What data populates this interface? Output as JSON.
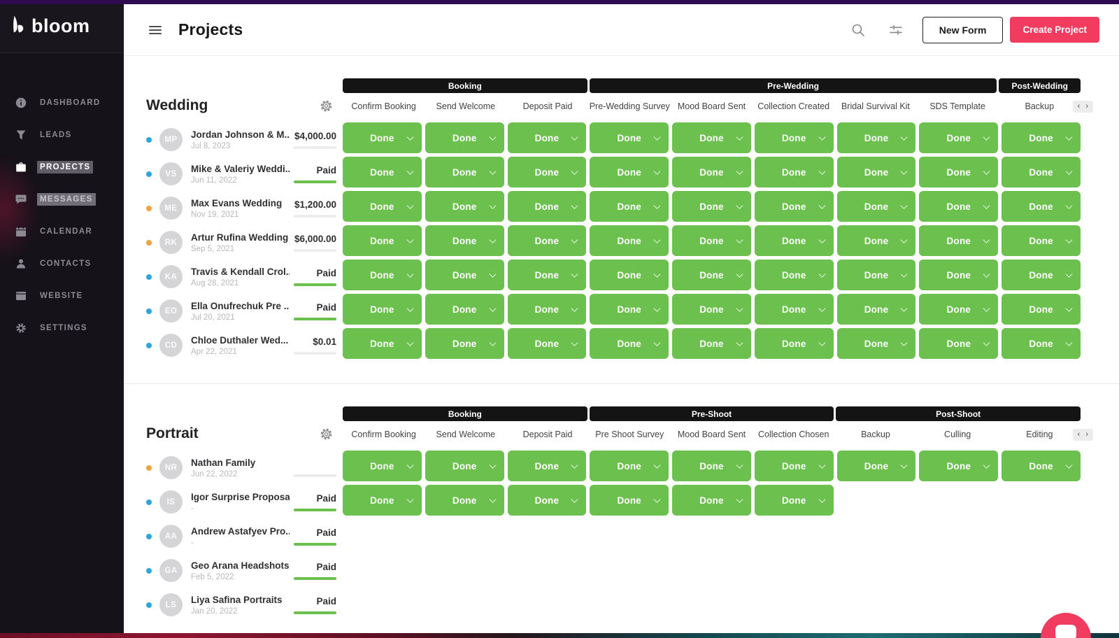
{
  "colors": {
    "accent_pink": "#f23c5f",
    "done_green": "#6cc04e",
    "dot_blue": "#2ba7e0",
    "dot_orange": "#f2a33c",
    "topbar_purple": "#2f0b50",
    "group_bar_black": "#141414",
    "sidebar_bg": "#16121a"
  },
  "icons": {
    "menu": "hamburger-menu",
    "search": "magnifying-glass",
    "filters": "sliders",
    "section_settings": "gear",
    "pager_prev_glyph": "‹",
    "pager_next_glyph": "›",
    "done_chevron": "chevron-down",
    "chat": "chat-window"
  },
  "sidebar": {
    "logo_text": "bloom",
    "items": [
      {
        "label": "DASHBOARD",
        "icon": "info-circle",
        "state": "normal"
      },
      {
        "label": "LEADS",
        "icon": "funnel",
        "state": "normal"
      },
      {
        "label": "PROJECTS",
        "icon": "briefcase",
        "state": "active"
      },
      {
        "label": "MESSAGES",
        "icon": "chat-bubble",
        "state": "highlighted"
      },
      {
        "label": "CALENDAR",
        "icon": "calendar",
        "state": "normal"
      },
      {
        "label": "CONTACTS",
        "icon": "person",
        "state": "normal"
      },
      {
        "label": "WEBSITE",
        "icon": "browser-window",
        "state": "normal"
      },
      {
        "label": "SETTINGS",
        "icon": "gear",
        "state": "normal"
      }
    ]
  },
  "header": {
    "title": "Projects",
    "new_form_label": "New Form",
    "create_project_label": "Create Project"
  },
  "done_label": "Done",
  "sections": [
    {
      "title": "Wedding",
      "groups": [
        {
          "label": "Booking",
          "span": 3
        },
        {
          "label": "Pre-Wedding",
          "span": 5
        },
        {
          "label": "Post-Wedding",
          "span": 1
        }
      ],
      "columns": [
        "Confirm Booking",
        "Send Welcome",
        "Deposit Paid",
        "Pre-Wedding Survey",
        "Mood Board Sent",
        "Collection Created",
        "Bridal Survival Kit",
        "SDS Template",
        "Backup"
      ],
      "clients": [
        {
          "dot": "blue",
          "initials": "MP",
          "name": "Jordan Johnson & M...",
          "date": "Jul 8, 2023",
          "amount": "$4,000.00",
          "paid": false,
          "done_count": 9
        },
        {
          "dot": "blue",
          "initials": "VS",
          "name": "Mike & Valeriy Weddi...",
          "date": "Jun 11, 2022",
          "amount": "Paid",
          "paid": true,
          "done_count": 9
        },
        {
          "dot": "orange",
          "initials": "ME",
          "name": "Max Evans Wedding",
          "date": "Nov 19, 2021",
          "amount": "$1,200.00",
          "paid": false,
          "done_count": 9
        },
        {
          "dot": "orange",
          "initials": "RK",
          "name": "Artur Rufina Wedding",
          "date": "Sep 5, 2021",
          "amount": "$6,000.00",
          "paid": false,
          "done_count": 9
        },
        {
          "dot": "blue",
          "initials": "KA",
          "name": "Travis & Kendall Crol...",
          "date": "Aug 28, 2021",
          "amount": "Paid",
          "paid": true,
          "done_count": 9
        },
        {
          "dot": "blue",
          "initials": "EO",
          "name": "Ella Onufrechuk Pre ...",
          "date": "Jul 20, 2021",
          "amount": "Paid",
          "paid": true,
          "done_count": 9
        },
        {
          "dot": "blue",
          "initials": "CD",
          "name": "Chloe Duthaler Wed...",
          "date": "Apr 22, 2021",
          "amount": "$0.01",
          "paid": false,
          "done_count": 9
        }
      ]
    },
    {
      "title": "Portrait",
      "groups": [
        {
          "label": "Booking",
          "span": 3
        },
        {
          "label": "Pre-Shoot",
          "span": 3
        },
        {
          "label": "Post-Shoot",
          "span": 3
        }
      ],
      "columns": [
        "Confirm Booking",
        "Send Welcome",
        "Deposit Paid",
        "Pre Shoot Survey",
        "Mood Board Sent",
        "Collection Chosen",
        "Backup",
        "Culling",
        "Editing"
      ],
      "clients": [
        {
          "dot": "orange",
          "initials": "NR",
          "name": "Nathan Family",
          "date": "Jun 22, 2022",
          "amount": "",
          "paid": false,
          "done_count": 9
        },
        {
          "dot": "blue",
          "initials": "IS",
          "name": "Igor Surprise Proposal",
          "date": "-",
          "amount": "Paid",
          "paid": true,
          "done_count": 6
        },
        {
          "dot": "blue",
          "initials": "AA",
          "name": "Andrew Astafyev Pro...",
          "date": "-",
          "amount": "Paid",
          "paid": true,
          "done_count": 0
        },
        {
          "dot": "blue",
          "initials": "GA",
          "name": "Geo Arana Headshots",
          "date": "Feb 5, 2022",
          "amount": "Paid",
          "paid": true,
          "done_count": 0
        },
        {
          "dot": "blue",
          "initials": "LS",
          "name": "Liya Safina Portraits",
          "date": "Jan 20, 2022",
          "amount": "Paid",
          "paid": true,
          "done_count": 0
        }
      ]
    }
  ]
}
